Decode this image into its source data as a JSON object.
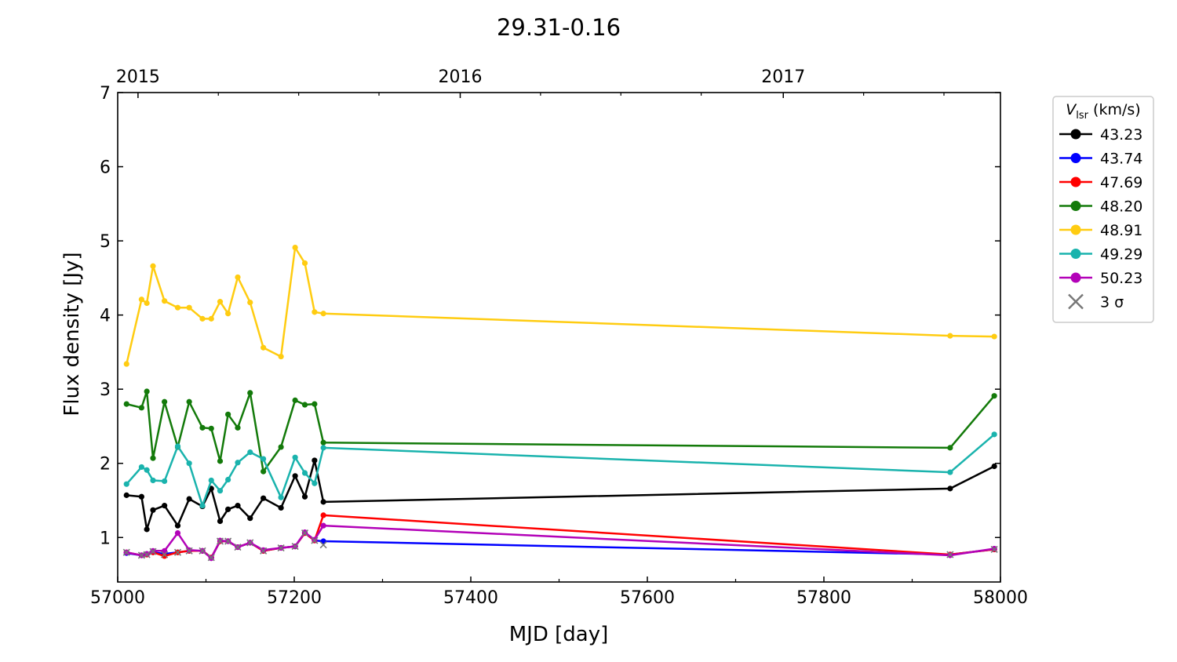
{
  "chart_data": {
    "type": "line",
    "title": "29.31-0.16",
    "xlabel": "MJD [day]",
    "ylabel": "Flux density [Jy]",
    "xlim": [
      57000,
      58000
    ],
    "ylim": [
      0.4,
      7
    ],
    "xticks": [
      57000,
      57200,
      57400,
      57600,
      57800,
      58000
    ],
    "xminor_step": 100,
    "yticks": [
      1,
      2,
      3,
      4,
      5,
      6,
      7
    ],
    "top_axis": {
      "ticks": [
        {
          "x": 57023,
          "label": "2015"
        },
        {
          "x": 57388,
          "label": "2016"
        },
        {
          "x": 57754,
          "label": "2017"
        }
      ],
      "minor": [
        57114,
        57205,
        57296,
        57479,
        57570,
        57661,
        57845,
        57936
      ]
    },
    "legend": {
      "title_symbol": "V",
      "title_subscript": "lsr",
      "title_unit": "(km/s)",
      "placement": "outside-right-top",
      "sigma_label": "3 σ",
      "sigma_color": "#777777"
    },
    "grid": false,
    "series": [
      {
        "name": "43.23",
        "color": "#000000",
        "x": [
          57010,
          57027,
          57033,
          57040,
          57053,
          57068,
          57081,
          57096,
          57106,
          57116,
          57125,
          57136,
          57150,
          57165,
          57185,
          57201,
          57212,
          57223,
          57233,
          57943,
          57993
        ],
        "y": [
          1.57,
          1.55,
          1.11,
          1.37,
          1.43,
          1.16,
          1.52,
          1.42,
          1.66,
          1.22,
          1.38,
          1.43,
          1.26,
          1.53,
          1.4,
          1.83,
          1.55,
          2.04,
          1.48,
          1.66,
          1.96
        ]
      },
      {
        "name": "43.74",
        "color": "#0000ff",
        "x": [
          57010,
          57027,
          57033,
          57040,
          57053,
          57068,
          57081,
          57096,
          57106,
          57116,
          57125,
          57136,
          57150,
          57165,
          57185,
          57201,
          57212,
          57223,
          57233,
          57943,
          57993
        ],
        "y": [
          0.79,
          0.76,
          0.77,
          0.8,
          0.78,
          0.8,
          0.82,
          0.82,
          0.73,
          0.95,
          0.95,
          0.87,
          0.93,
          0.82,
          0.86,
          0.88,
          1.06,
          0.96,
          0.95,
          0.77,
          0.84
        ]
      },
      {
        "name": "47.69",
        "color": "#ff0000",
        "x": [
          57010,
          57027,
          57033,
          57040,
          57053,
          57068,
          57081,
          57096,
          57106,
          57116,
          57125,
          57136,
          57150,
          57165,
          57185,
          57201,
          57212,
          57223,
          57233,
          57943,
          57993
        ],
        "y": [
          0.8,
          0.76,
          0.77,
          0.8,
          0.75,
          0.8,
          0.82,
          0.82,
          0.73,
          0.95,
          0.95,
          0.87,
          0.93,
          0.82,
          0.86,
          0.88,
          1.06,
          0.96,
          1.3,
          0.77,
          0.84
        ]
      },
      {
        "name": "48.20",
        "color": "#137a0a",
        "x": [
          57010,
          57027,
          57033,
          57040,
          57053,
          57068,
          57081,
          57096,
          57106,
          57116,
          57125,
          57136,
          57150,
          57165,
          57185,
          57201,
          57212,
          57223,
          57233,
          57943,
          57993
        ],
        "y": [
          2.8,
          2.75,
          2.97,
          2.07,
          2.83,
          2.22,
          2.83,
          2.48,
          2.47,
          2.03,
          2.66,
          2.48,
          2.95,
          1.89,
          2.22,
          2.85,
          2.79,
          2.8,
          2.28,
          2.21,
          2.91
        ]
      },
      {
        "name": "48.91",
        "color": "#ffcc11",
        "x": [
          57010,
          57027,
          57033,
          57040,
          57053,
          57068,
          57081,
          57096,
          57106,
          57116,
          57125,
          57136,
          57150,
          57165,
          57185,
          57201,
          57212,
          57223,
          57233,
          57943,
          57993
        ],
        "y": [
          3.34,
          4.21,
          4.16,
          4.66,
          4.19,
          4.1,
          4.1,
          3.95,
          3.95,
          4.18,
          4.02,
          4.51,
          4.17,
          3.56,
          3.44,
          4.91,
          4.7,
          4.04,
          4.02,
          3.72,
          3.71
        ]
      },
      {
        "name": "49.29",
        "color": "#1ab3ad",
        "x": [
          57010,
          57027,
          57033,
          57040,
          57053,
          57068,
          57081,
          57096,
          57106,
          57116,
          57125,
          57136,
          57150,
          57165,
          57185,
          57201,
          57212,
          57223,
          57233,
          57943,
          57993
        ],
        "y": [
          1.72,
          1.95,
          1.91,
          1.77,
          1.76,
          2.23,
          2.0,
          1.43,
          1.77,
          1.63,
          1.78,
          2.01,
          2.15,
          2.06,
          1.54,
          2.08,
          1.87,
          1.73,
          2.21,
          1.88,
          2.39
        ]
      },
      {
        "name": "50.23",
        "color": "#b302b8",
        "x": [
          57010,
          57027,
          57033,
          57040,
          57053,
          57068,
          57081,
          57096,
          57106,
          57116,
          57125,
          57136,
          57150,
          57165,
          57185,
          57201,
          57212,
          57223,
          57233,
          57943,
          57993
        ],
        "y": [
          0.8,
          0.76,
          0.78,
          0.82,
          0.82,
          1.06,
          0.83,
          0.82,
          0.72,
          0.96,
          0.95,
          0.87,
          0.93,
          0.83,
          0.86,
          0.88,
          1.07,
          0.97,
          1.16,
          0.76,
          0.85
        ]
      }
    ],
    "sigma_markers": [
      {
        "x": 57010,
        "y": 0.8
      },
      {
        "x": 57027,
        "y": 0.76
      },
      {
        "x": 57033,
        "y": 0.77
      },
      {
        "x": 57040,
        "y": 0.81
      },
      {
        "x": 57053,
        "y": 0.77
      },
      {
        "x": 57068,
        "y": 0.8
      },
      {
        "x": 57081,
        "y": 0.82
      },
      {
        "x": 57096,
        "y": 0.82
      },
      {
        "x": 57106,
        "y": 0.73
      },
      {
        "x": 57116,
        "y": 0.95
      },
      {
        "x": 57125,
        "y": 0.95
      },
      {
        "x": 57136,
        "y": 0.87
      },
      {
        "x": 57150,
        "y": 0.93
      },
      {
        "x": 57165,
        "y": 0.82
      },
      {
        "x": 57185,
        "y": 0.86
      },
      {
        "x": 57201,
        "y": 0.88
      },
      {
        "x": 57212,
        "y": 1.06
      },
      {
        "x": 57223,
        "y": 0.96
      },
      {
        "x": 57233,
        "y": 0.9
      },
      {
        "x": 57943,
        "y": 0.77
      },
      {
        "x": 57993,
        "y": 0.84
      }
    ]
  }
}
